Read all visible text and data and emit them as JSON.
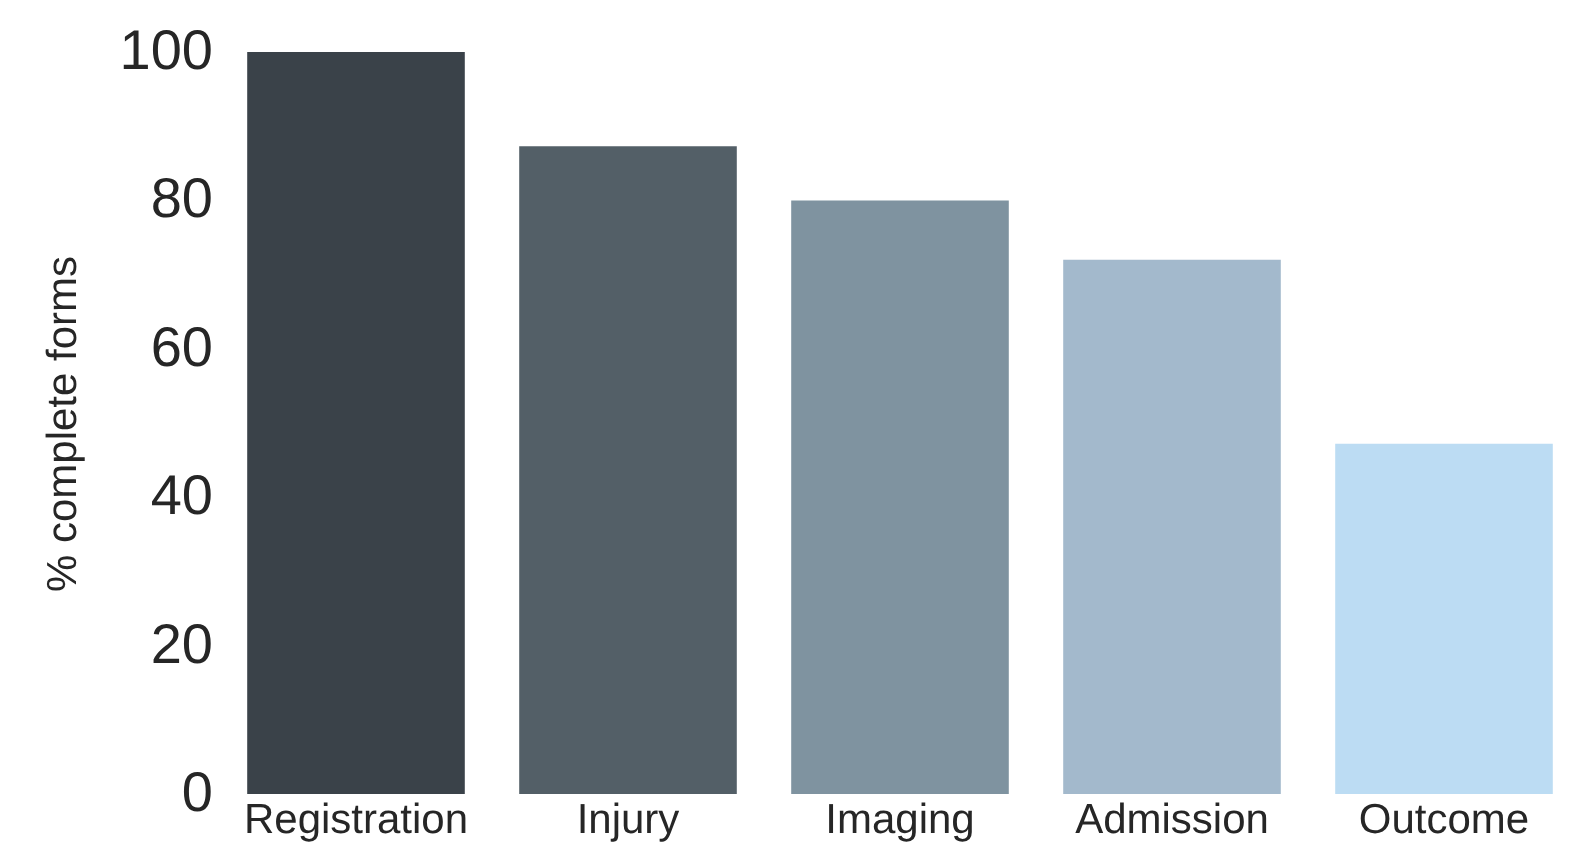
{
  "chart_data": {
    "type": "bar",
    "ylabel": "% complete forms",
    "categories": [
      "Registration",
      "Injury",
      "Imaging",
      "Admission",
      "Outcome"
    ],
    "values": [
      100,
      87.3,
      80,
      72,
      47.2
    ],
    "colors": [
      "#3a4249",
      "#535f67",
      "#7f93a0",
      "#a3b9cc",
      "#bcdcf3"
    ],
    "ylim": [
      0,
      100
    ],
    "yticks": [
      0,
      20,
      40,
      60,
      80,
      100
    ],
    "grid": false
  }
}
